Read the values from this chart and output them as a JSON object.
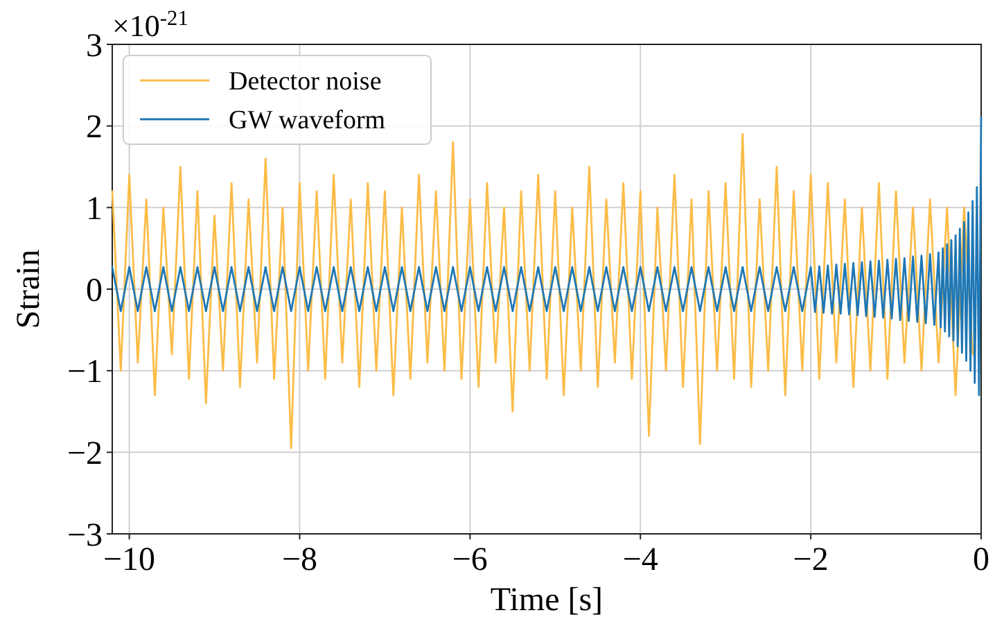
{
  "chart_data": {
    "type": "line",
    "xlabel": "Time [s]",
    "ylabel": "Strain",
    "annotations": [
      "×10$^{-21}$"
    ],
    "xlim": [
      -10.2,
      0
    ],
    "xticks": [
      -10,
      -8,
      -6,
      -4,
      -2,
      0
    ],
    "ylim": [
      -3,
      3
    ],
    "yticks": [
      -3,
      -2,
      -1,
      0,
      1,
      2,
      3
    ],
    "grid": true,
    "legend": "top left",
    "series": [
      {
        "name": "Detector noise",
        "color": "#fbbc48",
        "x": [
          -10.2,
          -10.1,
          -10,
          -9.9,
          -9.8,
          -9.7,
          -9.6,
          -9.5,
          -9.4,
          -9.3,
          -9.2,
          -9.1,
          -9,
          -8.9,
          -8.8,
          -8.7,
          -8.6,
          -8.5,
          -8.4,
          -8.3,
          -8.2,
          -8.1,
          -8,
          -7.9,
          -7.8,
          -7.7,
          -7.6,
          -7.5,
          -7.4,
          -7.3,
          -7.2,
          -7.1,
          -7,
          -6.9,
          -6.8,
          -6.7,
          -6.6,
          -6.5,
          -6.4,
          -6.3,
          -6.2,
          -6.1,
          -6,
          -5.9,
          -5.8,
          -5.7,
          -5.6,
          -5.5,
          -5.4,
          -5.3,
          -5.2,
          -5.1,
          -5,
          -4.9,
          -4.8,
          -4.7,
          -4.6,
          -4.5,
          -4.4,
          -4.3,
          -4.2,
          -4.1,
          -4,
          -3.9,
          -3.8,
          -3.7,
          -3.6,
          -3.5,
          -3.4,
          -3.3,
          -3.2,
          -3.1,
          -3,
          -2.9,
          -2.8,
          -2.7,
          -2.6,
          -2.5,
          -2.4,
          -2.3,
          -2.2,
          -2.1,
          -2,
          -1.9,
          -1.8,
          -1.7,
          -1.6,
          -1.5,
          -1.4,
          -1.3,
          -1.2,
          -1.1,
          -1,
          -0.9,
          -0.8,
          -0.7,
          -0.6,
          -0.5,
          -0.4,
          -0.3,
          -0.2,
          -0.1
        ],
        "values": [
          1.2,
          -1.0,
          1.4,
          -0.9,
          1.1,
          -1.3,
          1.0,
          -0.8,
          1.5,
          -1.1,
          1.2,
          -1.4,
          0.9,
          -1.0,
          1.3,
          -1.2,
          1.1,
          -0.9,
          1.6,
          -1.1,
          1.0,
          -1.95,
          1.3,
          -1.0,
          1.2,
          -1.1,
          1.4,
          -0.9,
          1.1,
          -1.2,
          1.3,
          -1.0,
          1.2,
          -1.3,
          1.0,
          -1.1,
          1.4,
          -0.9,
          1.2,
          -1.0,
          1.8,
          -1.1,
          1.1,
          -1.2,
          1.3,
          -0.9,
          1.0,
          -1.5,
          1.2,
          -1.0,
          1.4,
          -1.1,
          1.2,
          -1.3,
          1.0,
          -1.0,
          1.5,
          -1.2,
          1.1,
          -0.9,
          1.3,
          -1.1,
          1.2,
          -1.8,
          1.0,
          -1.0,
          1.4,
          -1.2,
          1.1,
          -1.9,
          1.2,
          -1.0,
          1.3,
          -1.1,
          1.9,
          -1.2,
          1.1,
          -1.0,
          1.5,
          -1.3,
          1.2,
          -1.0,
          1.4,
          -1.1,
          1.3,
          -0.9,
          1.1,
          -1.2,
          1.0,
          -1.0,
          1.3,
          -1.1,
          1.2,
          -0.9,
          1.0,
          -1.0,
          1.1,
          -0.9,
          1.0,
          -1.3,
          1.0,
          -0.8
        ]
      },
      {
        "name": "GW waveform",
        "color": "#1f77b4",
        "x": [
          -10.2,
          -10.1,
          -10,
          -9.9,
          -9.8,
          -9.7,
          -9.6,
          -9.5,
          -9.4,
          -9.3,
          -9.2,
          -9.1,
          -9,
          -8.9,
          -8.8,
          -8.7,
          -8.6,
          -8.5,
          -8.4,
          -8.3,
          -8.2,
          -8.1,
          -8,
          -7.9,
          -7.8,
          -7.7,
          -7.6,
          -7.5,
          -7.4,
          -7.3,
          -7.2,
          -7.1,
          -7,
          -6.9,
          -6.8,
          -6.7,
          -6.6,
          -6.5,
          -6.4,
          -6.3,
          -6.2,
          -6.1,
          -6,
          -5.9,
          -5.8,
          -5.7,
          -5.6,
          -5.5,
          -5.4,
          -5.3,
          -5.2,
          -5.1,
          -5,
          -4.9,
          -4.8,
          -4.7,
          -4.6,
          -4.5,
          -4.4,
          -4.3,
          -4.2,
          -4.1,
          -4,
          -3.9,
          -3.8,
          -3.7,
          -3.6,
          -3.5,
          -3.4,
          -3.3,
          -3.2,
          -3.1,
          -3,
          -2.9,
          -2.8,
          -2.7,
          -2.6,
          -2.5,
          -2.4,
          -2.3,
          -2.2,
          -2.1,
          -2,
          -1.95,
          -1.9,
          -1.85,
          -1.8,
          -1.75,
          -1.7,
          -1.65,
          -1.6,
          -1.55,
          -1.5,
          -1.45,
          -1.4,
          -1.35,
          -1.3,
          -1.25,
          -1.2,
          -1.15,
          -1.1,
          -1.05,
          -1,
          -0.95,
          -0.9,
          -0.85,
          -0.8,
          -0.75,
          -0.7,
          -0.65,
          -0.6,
          -0.55,
          -0.5,
          -0.475,
          -0.45,
          -0.425,
          -0.4,
          -0.375,
          -0.35,
          -0.325,
          -0.3,
          -0.275,
          -0.25,
          -0.225,
          -0.2,
          -0.175,
          -0.15,
          -0.125,
          -0.1,
          -0.075,
          -0.05,
          -0.025,
          0
        ],
        "values": [
          0.27,
          -0.27,
          0.27,
          -0.27,
          0.27,
          -0.27,
          0.27,
          -0.27,
          0.27,
          -0.27,
          0.27,
          -0.27,
          0.27,
          -0.27,
          0.27,
          -0.27,
          0.27,
          -0.27,
          0.27,
          -0.27,
          0.27,
          -0.27,
          0.27,
          -0.27,
          0.27,
          -0.27,
          0.27,
          -0.27,
          0.27,
          -0.27,
          0.27,
          -0.27,
          0.27,
          -0.27,
          0.27,
          -0.27,
          0.27,
          -0.27,
          0.27,
          -0.27,
          0.27,
          -0.27,
          0.27,
          -0.27,
          0.27,
          -0.27,
          0.27,
          -0.27,
          0.27,
          -0.27,
          0.27,
          -0.27,
          0.27,
          -0.27,
          0.27,
          -0.27,
          0.27,
          -0.27,
          0.27,
          -0.27,
          0.27,
          -0.27,
          0.27,
          -0.27,
          0.27,
          -0.27,
          0.27,
          -0.27,
          0.27,
          -0.27,
          0.27,
          -0.27,
          0.27,
          -0.27,
          0.27,
          -0.27,
          0.27,
          -0.27,
          0.27,
          -0.27,
          0.27,
          -0.27,
          0.27,
          -0.28,
          0.28,
          -0.29,
          0.29,
          -0.3,
          0.3,
          -0.3,
          0.31,
          -0.31,
          0.32,
          -0.32,
          0.33,
          -0.33,
          0.34,
          -0.34,
          0.35,
          -0.35,
          0.36,
          -0.36,
          0.37,
          -0.38,
          0.38,
          -0.39,
          0.4,
          -0.4,
          0.41,
          -0.42,
          0.43,
          -0.44,
          0.45,
          -0.47,
          0.5,
          -0.52,
          0.55,
          -0.58,
          0.6,
          -0.63,
          0.66,
          -0.7,
          0.74,
          -0.78,
          0.82,
          -0.88,
          0.94,
          -1.0,
          1.08,
          -1.15,
          1.25,
          -1.3,
          2.1
        ]
      }
    ]
  }
}
